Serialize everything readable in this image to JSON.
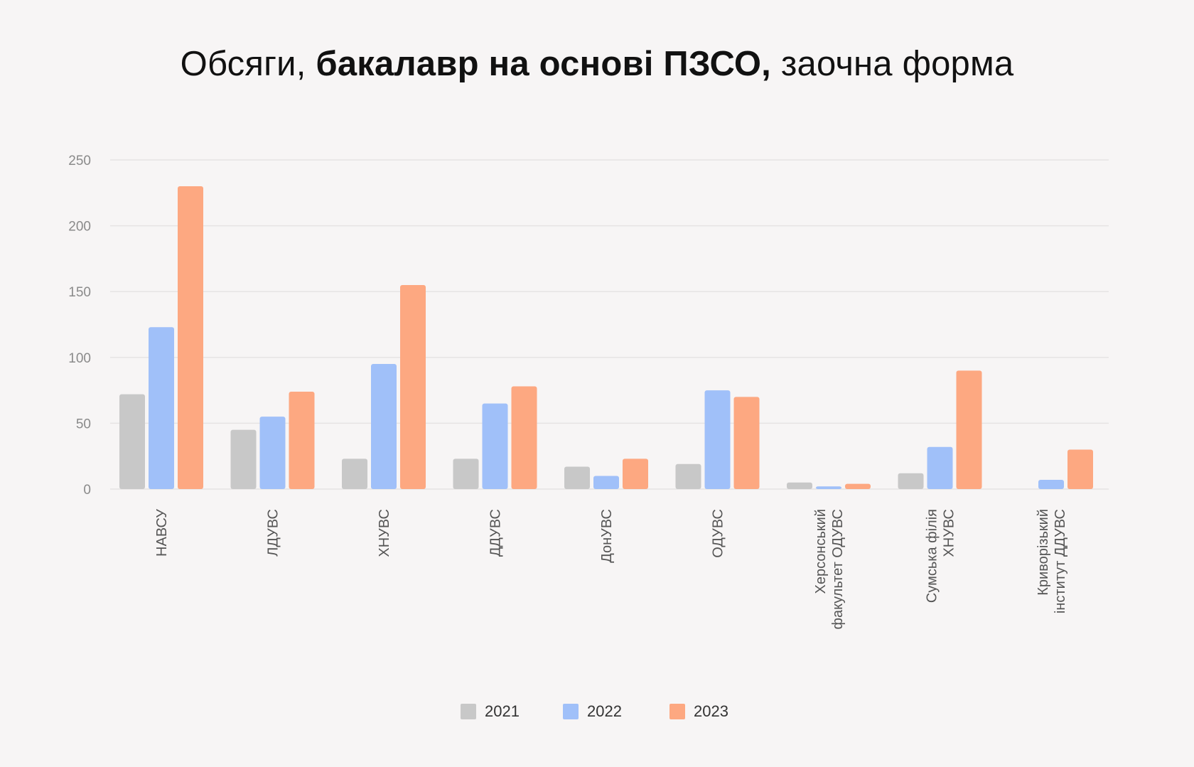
{
  "title": {
    "prefix": "Обсяги,",
    "bold": "бакалавр на основі ПЗСО,",
    "suffix": "заочна форма"
  },
  "colors": {
    "background": "#f7f5f5",
    "grid": "#e6e4e4",
    "axis_text": "#8a8a8a",
    "category_text": "#555555"
  },
  "chart_data": {
    "type": "bar",
    "title": "Обсяги, бакалавр на основі ПЗСО, заочна форма",
    "xlabel": "",
    "ylabel": "",
    "ylim": [
      0,
      250
    ],
    "yticks": [
      0,
      50,
      100,
      150,
      200,
      250
    ],
    "grid": true,
    "legend_position": "bottom",
    "categories": [
      [
        "НАВСУ"
      ],
      [
        "ЛДУВС"
      ],
      [
        "ХНУВС"
      ],
      [
        "ДДУВС"
      ],
      [
        "ДонУВС"
      ],
      [
        "ОДУВС"
      ],
      [
        "Херсонський",
        "факультет ОДУВС"
      ],
      [
        "Сумська філія",
        "ХНУВС"
      ],
      [
        "Криворізький",
        "інститут ДДУВС"
      ]
    ],
    "series": [
      {
        "name": "2021",
        "color": "#c8c8c8",
        "values": [
          72,
          45,
          23,
          23,
          17,
          19,
          5,
          12,
          0
        ]
      },
      {
        "name": "2022",
        "color": "#a0c0f9",
        "values": [
          123,
          55,
          95,
          65,
          10,
          75,
          2,
          32,
          7
        ]
      },
      {
        "name": "2023",
        "color": "#fda881",
        "values": [
          230,
          74,
          155,
          78,
          23,
          70,
          4,
          90,
          30
        ]
      }
    ]
  }
}
